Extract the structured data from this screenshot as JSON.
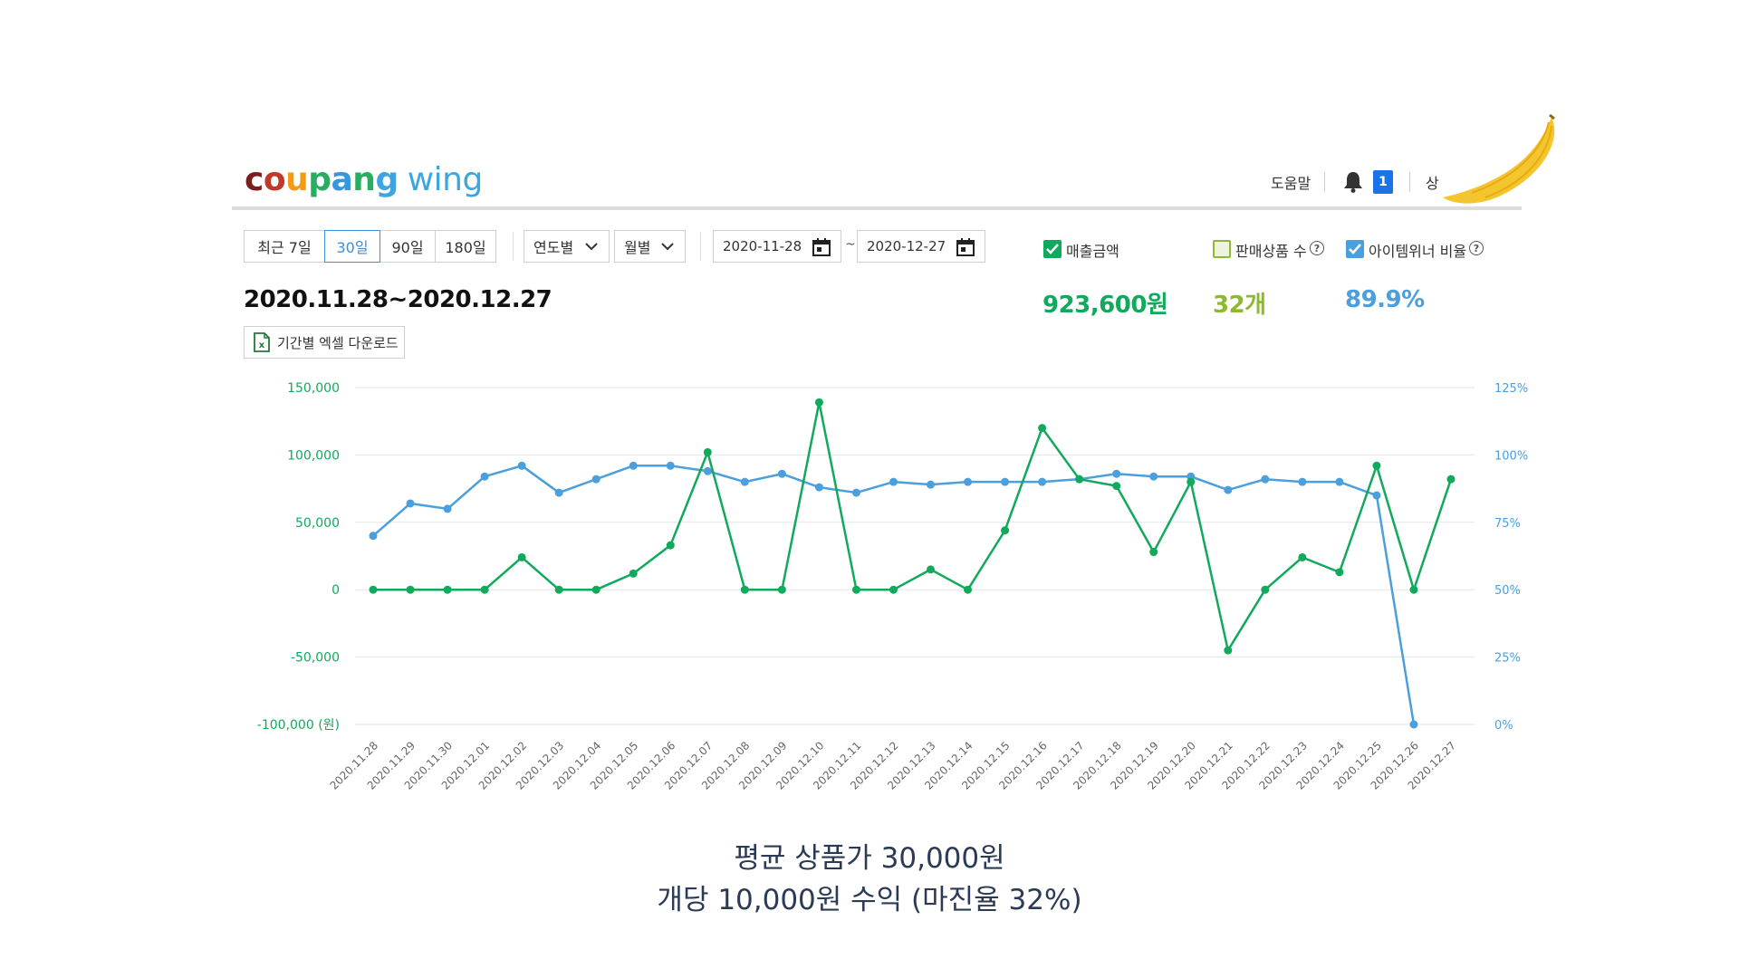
{
  "header": {
    "logo_part1": "coupang",
    "logo_part2": "wing",
    "logo_letter_colors": [
      "#7a1e1e",
      "#c0392b",
      "#f39c12",
      "#27ae60",
      "#3498db",
      "#27ae60",
      "#3da5e0"
    ],
    "help_label": "도움말",
    "notification_count": "1",
    "user_label": "상"
  },
  "filters": {
    "period_tabs": [
      "최근 7일",
      "30일",
      "90일",
      "180일"
    ],
    "active_tab": "30일",
    "year_dropdown": "연도별",
    "month_dropdown": "월별",
    "start_date": "2020-11-28",
    "end_date": "2020-12-27",
    "separator": "~"
  },
  "metrics": {
    "sales_label": "매출금액",
    "sales_value": "923,600원",
    "sales_checked": true,
    "count_label": "판매상품 수",
    "count_value": "32개",
    "count_checked": false,
    "winner_label": "아이템위너 비율",
    "winner_value": "89.9%",
    "winner_checked": true,
    "colors": {
      "sales": "#11a95c",
      "count": "#8fb832",
      "winner": "#4a9fdc"
    }
  },
  "date_range": "2020.11.28~2020.12.27",
  "excel_button": "기간별 엑셀 다운로드",
  "chart_data": {
    "type": "line",
    "x": [
      "2020.11.28",
      "2020.11.29",
      "2020.11.30",
      "2020.12.01",
      "2020.12.02",
      "2020.12.03",
      "2020.12.04",
      "2020.12.05",
      "2020.12.06",
      "2020.12.07",
      "2020.12.08",
      "2020.12.09",
      "2020.12.10",
      "2020.12.11",
      "2020.12.12",
      "2020.12.13",
      "2020.12.14",
      "2020.12.15",
      "2020.12.16",
      "2020.12.17",
      "2020.12.18",
      "2020.12.19",
      "2020.12.20",
      "2020.12.21",
      "2020.12.22",
      "2020.12.23",
      "2020.12.24",
      "2020.12.25",
      "2020.12.26",
      "2020.12.27"
    ],
    "series": [
      {
        "axis": "left",
        "color": "#11a95c",
        "values": [
          0,
          0,
          0,
          0,
          24000,
          0,
          0,
          12000,
          33000,
          102000,
          0,
          0,
          139000,
          0,
          0,
          15000,
          0,
          44000,
          120000,
          82000,
          77000,
          28000,
          80000,
          -45000,
          0,
          24000,
          13000,
          92000,
          0,
          82000
        ]
      },
      {
        "axis": "right",
        "color": "#4a9fdc",
        "values": [
          70,
          82,
          80,
          92,
          96,
          86,
          91,
          96,
          96,
          94,
          90,
          93,
          88,
          86,
          90,
          89,
          90,
          90,
          90,
          91,
          93,
          92,
          92,
          87,
          91,
          90,
          90,
          85,
          0,
          null
        ]
      }
    ],
    "y_left": {
      "ticks": [
        150000,
        100000,
        50000,
        0,
        -50000,
        -100000
      ],
      "tick_labels": [
        "150,000",
        "100,000",
        "50,000",
        "0",
        "-50,000",
        "-100,000 (원)"
      ],
      "range": [
        -100000,
        150000
      ],
      "color": "#11a95c"
    },
    "y_right": {
      "ticks": [
        125,
        100,
        75,
        50,
        25,
        0
      ],
      "tick_labels": [
        "125%",
        "100%",
        "75%",
        "50%",
        "25%",
        "0%"
      ],
      "range": [
        0,
        125
      ],
      "color": "#4a9fdc"
    },
    "grid": true
  },
  "caption": {
    "line1": "평균 상품가  30,000원",
    "line2": "개당 10,000원 수익 (마진율 32%)"
  }
}
